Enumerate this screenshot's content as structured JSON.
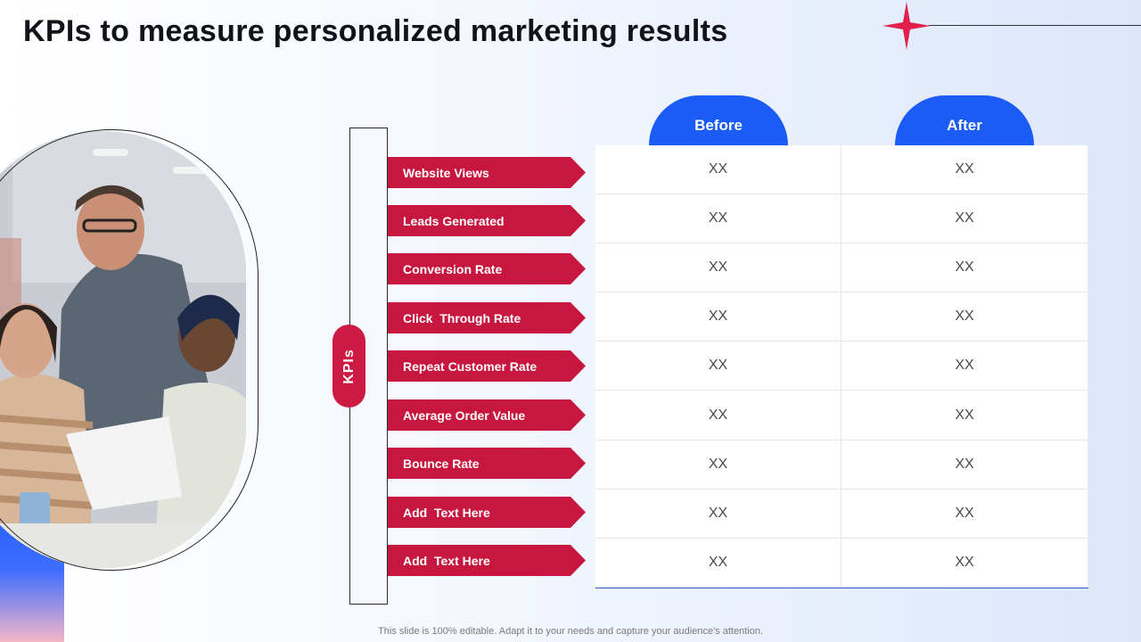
{
  "title": "KPIs to measure personalized marketing results",
  "kpi_label": "KPIs",
  "columns": [
    "Before",
    "After"
  ],
  "rows": [
    {
      "label": "Website Views",
      "before": "XX",
      "after": "XX"
    },
    {
      "label": "Leads Generated",
      "before": "XX",
      "after": "XX"
    },
    {
      "label": "Conversion Rate",
      "before": "XX",
      "after": "XX"
    },
    {
      "label": "Click  Through Rate",
      "before": "XX",
      "after": "XX"
    },
    {
      "label": "Repeat Customer Rate",
      "before": "XX",
      "after": "XX"
    },
    {
      "label": "Average Order Value",
      "before": "XX",
      "after": "XX"
    },
    {
      "label": "Bounce Rate",
      "before": "XX",
      "after": "XX"
    },
    {
      "label": "Add  Text Here",
      "before": "XX",
      "after": "XX"
    },
    {
      "label": "Add  Text Here",
      "before": "XX",
      "after": "XX"
    }
  ],
  "footer": "This slide is 100% editable. Adapt it to your needs and capture your audience's attention.",
  "colors": {
    "accent_red": "#c8173f",
    "accent_blue": "#1a5cf5"
  },
  "icons": {
    "decor": "four-point-star-icon"
  }
}
